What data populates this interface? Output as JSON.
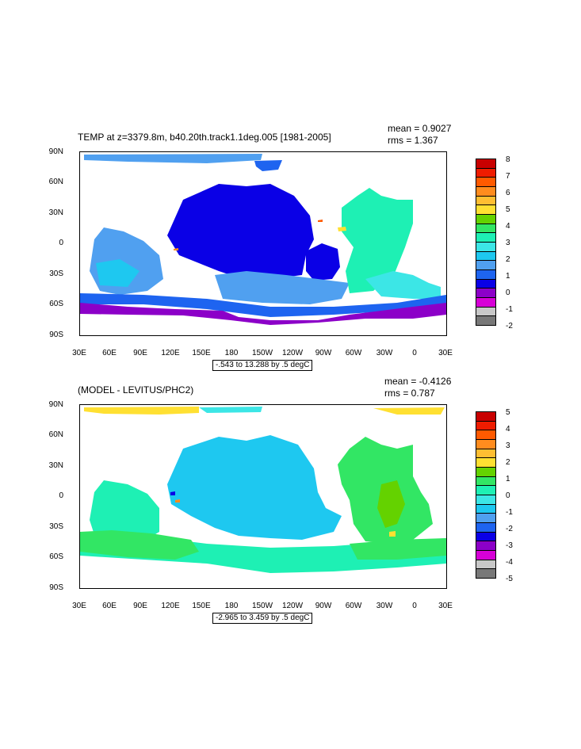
{
  "panels": [
    {
      "title": "TEMP at z=3379.8m, b40.20th.track1.1deg.005 [1981-2005]",
      "mean": "mean = 0.9027",
      "rms": "rms = 1.367",
      "range_label": "-.543 to 13.288 by .5 degC",
      "lat_labels": [
        "90N",
        "60N",
        "30N",
        "0",
        "30S",
        "60S",
        "90S"
      ],
      "lon_labels": [
        "30E",
        "60E",
        "90E",
        "120E",
        "150E",
        "180",
        "150W",
        "120W",
        "90W",
        "60W",
        "30W",
        "0",
        "30E"
      ],
      "colorbar": {
        "labels": [
          "8",
          "7",
          "6",
          "5",
          "4",
          "3",
          "2",
          "1",
          "0",
          "-1",
          "-2"
        ],
        "colors": [
          "#C80000",
          "#EE1C00",
          "#FF5A00",
          "#FF8C1E",
          "#FFBE32",
          "#FFE032",
          "#64D200",
          "#32E664",
          "#1EF0B4",
          "#3CE6E6",
          "#1EC8F0",
          "#50A0F0",
          "#1E64F0",
          "#0A00E6",
          "#8C00C8",
          "#D700D7",
          "#C8C8C8",
          "#787878"
        ]
      }
    },
    {
      "title": "(MODEL - LEVITUS/PHC2)",
      "mean": "mean = -0.4126",
      "rms": "rms = 0.787",
      "range_label": "-2.965 to 3.459 by .5 degC",
      "lat_labels": [
        "90N",
        "60N",
        "30N",
        "0",
        "30S",
        "60S",
        "90S"
      ],
      "lon_labels": [
        "30E",
        "60E",
        "90E",
        "120E",
        "150E",
        "180",
        "150W",
        "120W",
        "90W",
        "60W",
        "30W",
        "0",
        "30E"
      ],
      "colorbar": {
        "labels": [
          "5",
          "4",
          "3",
          "2",
          "1",
          "0",
          "-1",
          "-2",
          "-3",
          "-4",
          "-5"
        ],
        "colors": [
          "#C80000",
          "#EE1C00",
          "#FF5A00",
          "#FF8C1E",
          "#FFBE32",
          "#FFE032",
          "#64D200",
          "#32E664",
          "#1EF0B4",
          "#3CE6E6",
          "#1EC8F0",
          "#50A0F0",
          "#1E64F0",
          "#0A00E6",
          "#8C00C8",
          "#D700D7",
          "#C8C8C8",
          "#787878"
        ]
      }
    }
  ]
}
